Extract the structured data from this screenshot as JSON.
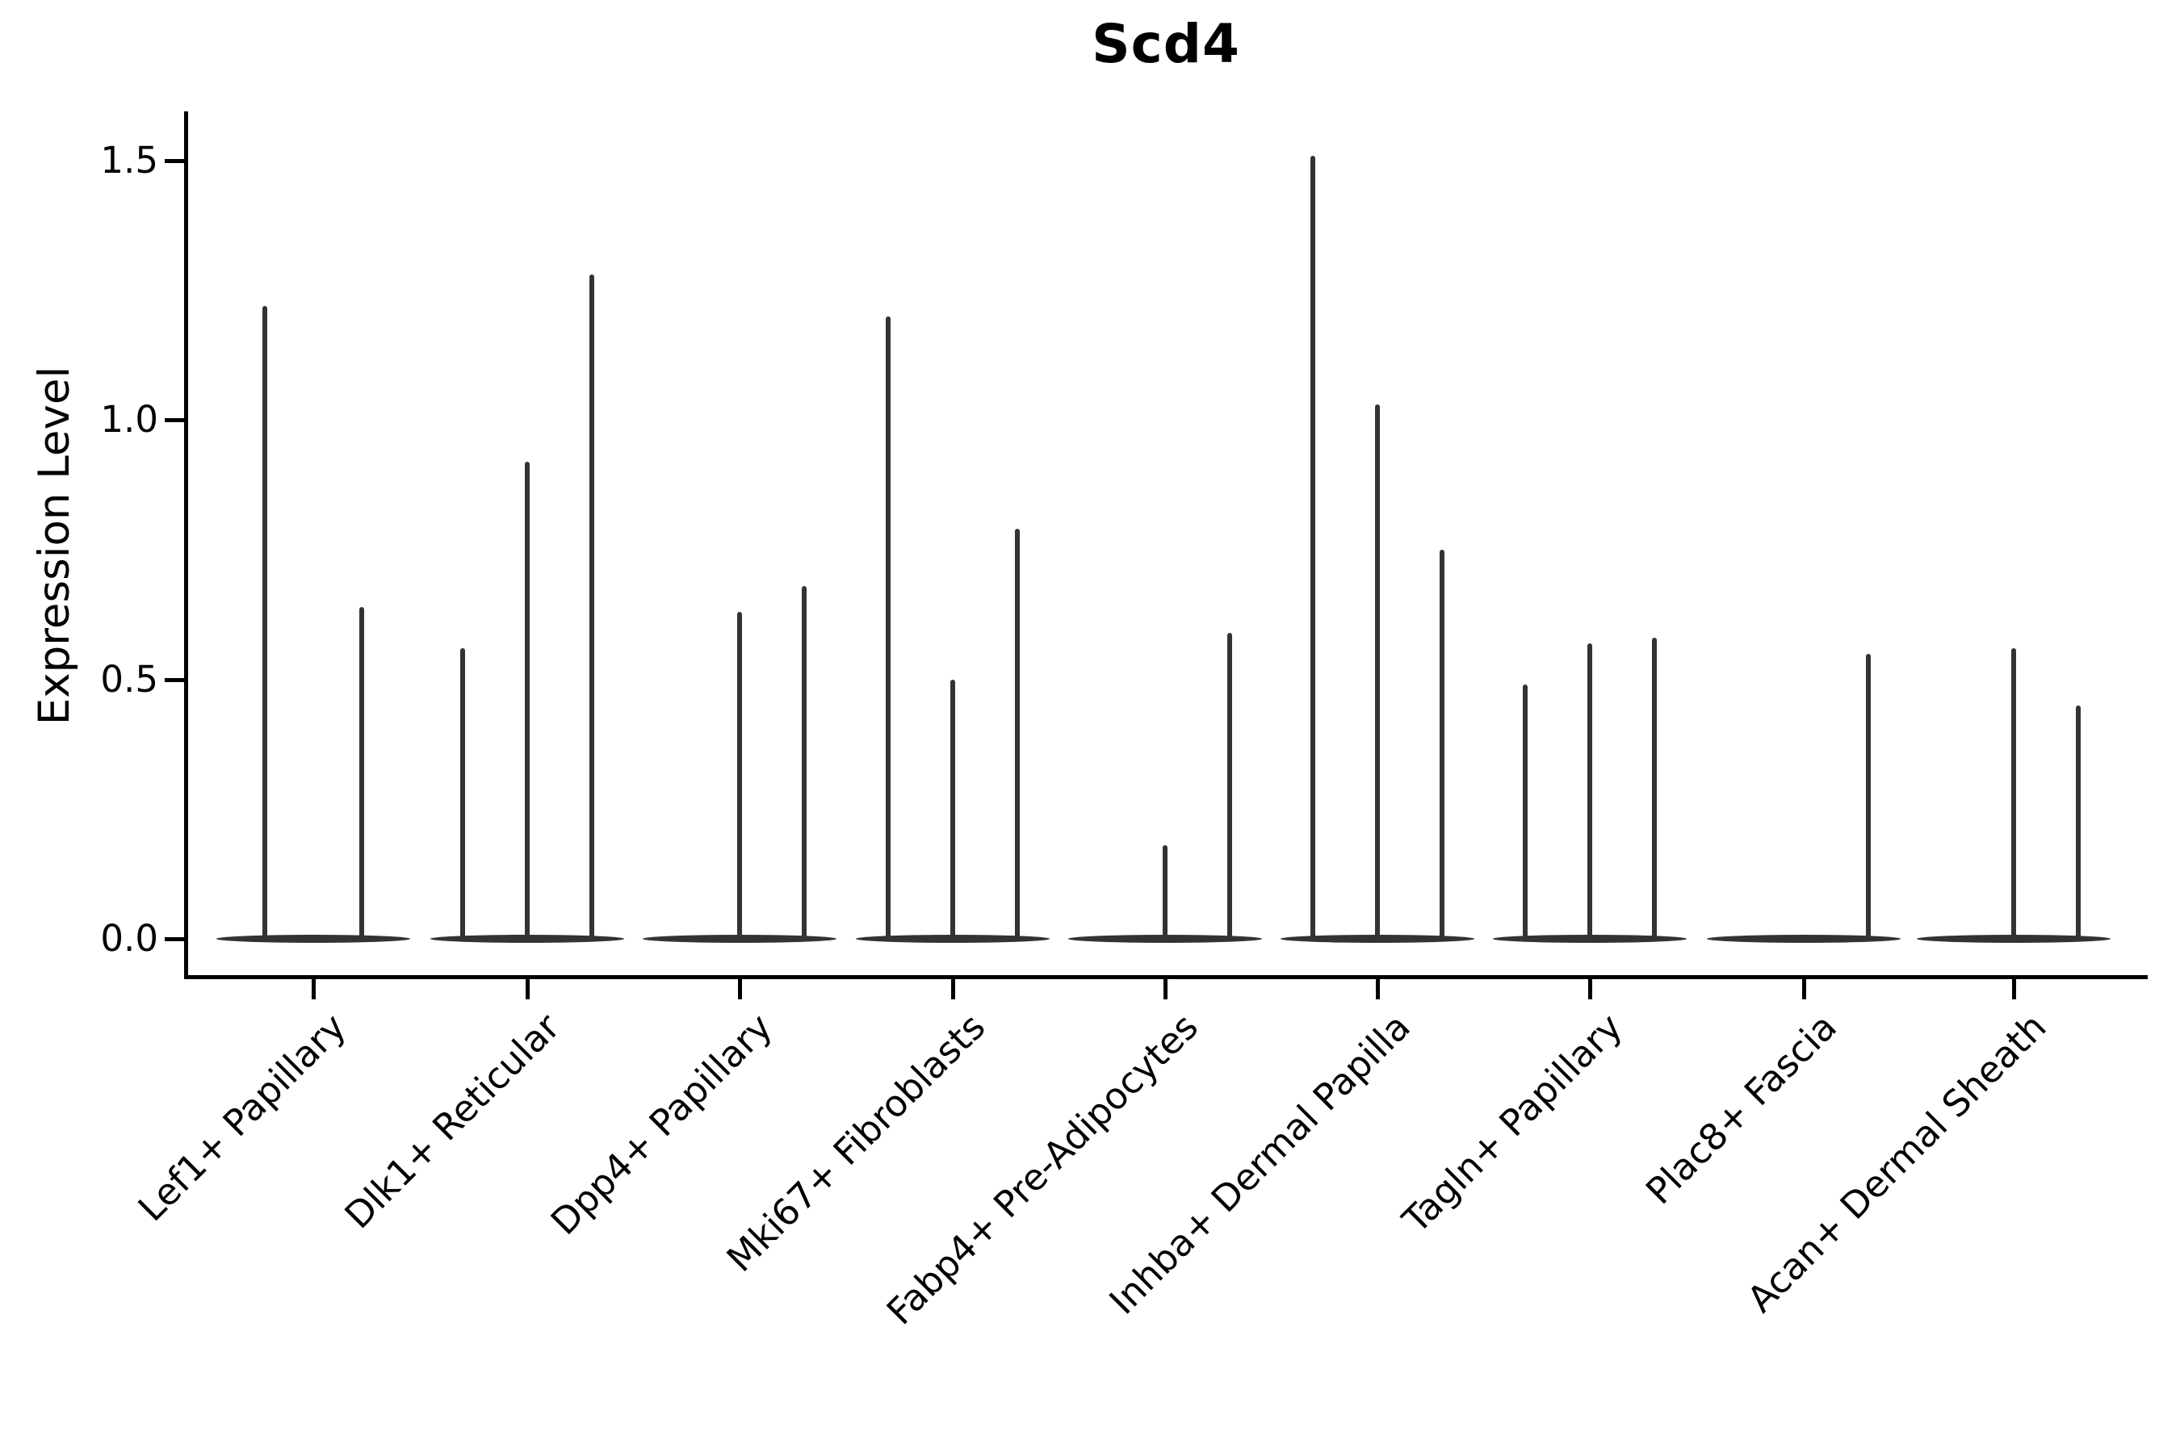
{
  "figure": {
    "title": "Scd4"
  },
  "y_axis": {
    "label": "Expression Level",
    "tick_labels": [
      "0.0",
      "0.5",
      "1.0",
      "1.5"
    ]
  },
  "chart_data": {
    "type": "violin",
    "title": "Scd4",
    "xlabel": "",
    "ylabel": "Expression Level",
    "ylim": [
      0,
      1.67
    ],
    "yticks": [
      0.0,
      0.5,
      1.0,
      1.5
    ],
    "grid": false,
    "legend": "none",
    "violin_color": "#333333",
    "axis_color": "#000000",
    "categories": [
      "Lef1+ Papillary",
      "Dlk1+ Reticular",
      "Dpp4+ Papillary",
      "Mki67+ Fibroblasts",
      "Fabp4+ Pre-Adipocytes",
      "Inhba+ Dermal Papilla",
      "Tagln+ Papillary",
      "Plac8+ Fascia",
      "Acan+ Dermal Sheath"
    ],
    "groups": [
      {
        "category": "Lef1+ Papillary",
        "n_violins": 2,
        "spikes": [
          {
            "slot": "left",
            "value": 1.22
          },
          {
            "slot": "right",
            "value": 0.64
          }
        ]
      },
      {
        "category": "Dlk1+ Reticular",
        "n_violins": 3,
        "spikes": [
          {
            "slot": "left",
            "value": 0.56
          },
          {
            "slot": "mid",
            "value": 0.92
          },
          {
            "slot": "right",
            "value": 1.28
          }
        ]
      },
      {
        "category": "Dpp4+ Papillary",
        "n_violins": 3,
        "spikes": [
          {
            "slot": "mid",
            "value": 0.63
          },
          {
            "slot": "right",
            "value": 0.68
          }
        ]
      },
      {
        "category": "Mki67+ Fibroblasts",
        "n_violins": 3,
        "spikes": [
          {
            "slot": "left",
            "value": 1.2
          },
          {
            "slot": "mid",
            "value": 0.5
          },
          {
            "slot": "right",
            "value": 0.79
          }
        ]
      },
      {
        "category": "Fabp4+ Pre-Adipocytes",
        "n_violins": 3,
        "spikes": [
          {
            "slot": "mid",
            "value": 0.18
          },
          {
            "slot": "right",
            "value": 0.59
          }
        ]
      },
      {
        "category": "Inhba+ Dermal Papilla",
        "n_violins": 3,
        "spikes": [
          {
            "slot": "left",
            "value": 1.51
          },
          {
            "slot": "mid",
            "value": 1.03
          },
          {
            "slot": "right",
            "value": 0.75
          }
        ]
      },
      {
        "category": "Tagln+ Papillary",
        "n_violins": 3,
        "spikes": [
          {
            "slot": "left",
            "value": 0.49
          },
          {
            "slot": "mid",
            "value": 0.57
          },
          {
            "slot": "right",
            "value": 0.58
          }
        ]
      },
      {
        "category": "Plac8+ Fascia",
        "n_violins": 3,
        "spikes": [
          {
            "slot": "right",
            "value": 0.55
          }
        ]
      },
      {
        "category": "Acan+ Dermal Sheath",
        "n_violins": 3,
        "spikes": [
          {
            "slot": "mid",
            "value": 0.56
          },
          {
            "slot": "right",
            "value": 0.45
          }
        ]
      }
    ]
  }
}
